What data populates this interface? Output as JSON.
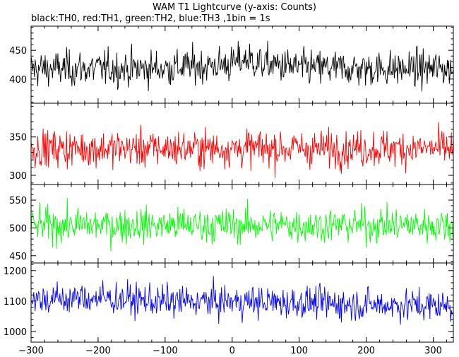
{
  "chart_data": {
    "type": "line",
    "title": "WAM T1 Lightcurve (y-axis: Counts)",
    "subtitle": "black:TH0, red:TH1, green:TH2, blue:TH3 ,1bin = 1s",
    "x_range": [
      -300,
      330
    ],
    "x_ticks": [
      -300,
      -200,
      -100,
      0,
      100,
      200,
      300
    ],
    "panels": [
      {
        "series": "TH0",
        "color": "#000000",
        "y_range": [
          358,
          492
        ],
        "y_ticks": [
          400,
          450
        ],
        "mean": 418,
        "spread": 22,
        "profile": [
          {
            "x": -300,
            "y": 418
          },
          {
            "x": -200,
            "y": 418
          },
          {
            "x": -100,
            "y": 419
          },
          {
            "x": 0,
            "y": 426
          },
          {
            "x": 20,
            "y": 435
          },
          {
            "x": 40,
            "y": 428
          },
          {
            "x": 100,
            "y": 420
          },
          {
            "x": 200,
            "y": 418
          },
          {
            "x": 330,
            "y": 418
          }
        ]
      },
      {
        "series": "TH1",
        "color": "#ff0000",
        "y_range": [
          288,
          394
        ],
        "y_ticks": [
          300,
          350
        ],
        "mean": 335,
        "spread": 17,
        "profile": [
          {
            "x": -300,
            "y": 335
          },
          {
            "x": 330,
            "y": 335
          }
        ]
      },
      {
        "series": "TH2",
        "color": "#00ff00",
        "y_range": [
          437,
          578
        ],
        "y_ticks": [
          450,
          500,
          550
        ],
        "mean": 505,
        "spread": 22,
        "profile": [
          {
            "x": -300,
            "y": 505
          },
          {
            "x": 330,
            "y": 505
          }
        ]
      },
      {
        "series": "TH3",
        "color": "#0000ff",
        "y_range": [
          965,
          1225
        ],
        "y_ticks": [
          1000,
          1100,
          1200
        ],
        "mean": 1100,
        "spread": 37,
        "profile": [
          {
            "x": -300,
            "y": 1105
          },
          {
            "x": -200,
            "y": 1110
          },
          {
            "x": -100,
            "y": 1098
          },
          {
            "x": 0,
            "y": 1098
          },
          {
            "x": 100,
            "y": 1095
          },
          {
            "x": 200,
            "y": 1088
          },
          {
            "x": 330,
            "y": 1085
          }
        ]
      }
    ]
  }
}
